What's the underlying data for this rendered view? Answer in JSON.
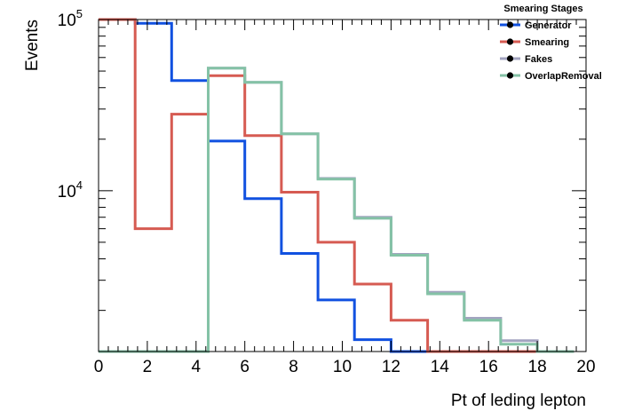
{
  "chart_data": {
    "type": "line",
    "style": "step-histogram",
    "xlabel": "Pt of leding lepton",
    "ylabel": "Events",
    "xlim": [
      0,
      20
    ],
    "ylim": [
      1150,
      100000
    ],
    "log_y": true,
    "grid": false,
    "bin_edges": [
      0,
      1.5,
      3,
      4.5,
      6,
      7.5,
      9,
      10.5,
      12,
      13.5,
      15,
      16.5,
      18,
      19.5
    ],
    "x_ticks": [
      "0",
      "2",
      "4",
      "6",
      "8",
      "10",
      "12",
      "14",
      "16",
      "18",
      "20"
    ],
    "y_ticks": [
      {
        "value": 10000,
        "base": "10",
        "exp": "4"
      },
      {
        "value": 100000,
        "base": "10",
        "exp": "5"
      }
    ],
    "legend": {
      "title": "Smearing Stages",
      "placement": "top-right"
    },
    "series": [
      {
        "name": "Generator",
        "color": "#1151e0",
        "values": [
          100000,
          95000,
          44000,
          19500,
          9000,
          4300,
          2300,
          1350,
          1100,
          1100,
          1100,
          1100,
          1100
        ]
      },
      {
        "name": "Smearing",
        "color": "#d65b52",
        "values": [
          100000,
          6000,
          28000,
          47000,
          21000,
          9800,
          5000,
          2850,
          1750,
          1100,
          1100,
          1100,
          1100
        ]
      },
      {
        "name": "Fakes",
        "color": "#a3a4c0",
        "values": [
          1100,
          1100,
          1100,
          52000,
          43000,
          21500,
          11800,
          7000,
          4250,
          2550,
          1800,
          1330,
          1100
        ]
      },
      {
        "name": "OverlapRemoval",
        "color": "#84c2a6",
        "values": [
          1100,
          1100,
          1100,
          52000,
          43000,
          21500,
          11700,
          6900,
          4200,
          2500,
          1750,
          1270,
          1100
        ]
      }
    ]
  }
}
